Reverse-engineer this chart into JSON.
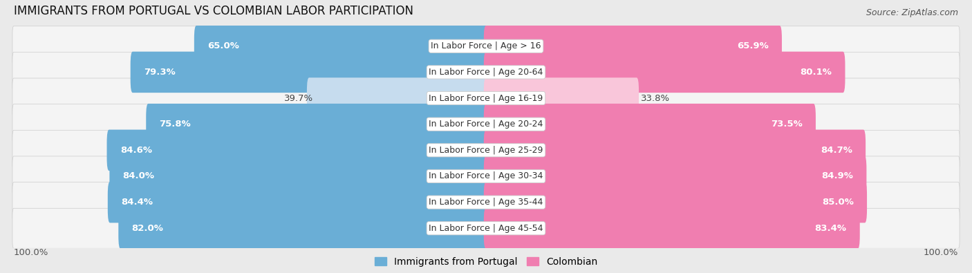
{
  "title": "IMMIGRANTS FROM PORTUGAL VS COLOMBIAN LABOR PARTICIPATION",
  "source": "Source: ZipAtlas.com",
  "categories": [
    "In Labor Force | Age > 16",
    "In Labor Force | Age 20-64",
    "In Labor Force | Age 16-19",
    "In Labor Force | Age 20-24",
    "In Labor Force | Age 25-29",
    "In Labor Force | Age 30-34",
    "In Labor Force | Age 35-44",
    "In Labor Force | Age 45-54"
  ],
  "portugal_values": [
    65.0,
    79.3,
    39.7,
    75.8,
    84.6,
    84.0,
    84.4,
    82.0
  ],
  "colombian_values": [
    65.9,
    80.1,
    33.8,
    73.5,
    84.7,
    84.9,
    85.0,
    83.4
  ],
  "portugal_color": "#6AAED6",
  "colombian_color": "#F07EB0",
  "portugal_color_light": "#C6DCEE",
  "colombian_color_light": "#F9C6DA",
  "bg_color": "#EAEAEA",
  "row_bg_color": "#F4F4F4",
  "max_value": 100.0,
  "label_fontsize": 9.5,
  "title_fontsize": 12,
  "source_fontsize": 9,
  "legend_fontsize": 10
}
